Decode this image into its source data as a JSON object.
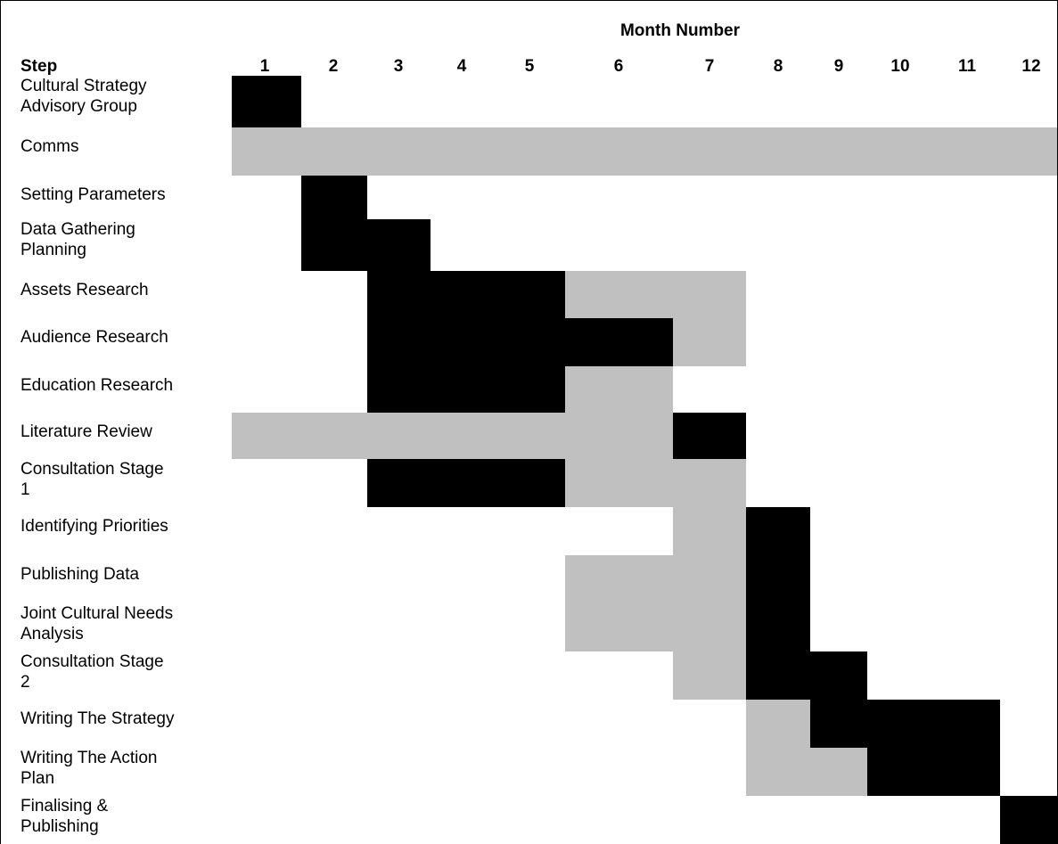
{
  "chart_data": {
    "type": "gantt",
    "column_group_label": "Month Number",
    "row_header": "Step",
    "months": [
      "1",
      "2",
      "3",
      "4",
      "5",
      "6",
      "7",
      "8",
      "9",
      "10",
      "11",
      "12"
    ],
    "legend": [],
    "colors": {
      "primary": "#000000",
      "secondary": "#c0c0c0",
      "background": "#ffffff"
    },
    "tasks": [
      {
        "label": [
          "Cultural Strategy",
          "Advisory Group"
        ],
        "primary": [
          1,
          1
        ],
        "secondary": []
      },
      {
        "label": [
          "Comms"
        ],
        "primary": [],
        "secondary": [
          [
            1,
            12
          ]
        ]
      },
      {
        "label": [
          "Setting Parameters"
        ],
        "primary": [
          [
            2,
            2
          ]
        ],
        "secondary": []
      },
      {
        "label": [
          "Data Gathering",
          "Planning"
        ],
        "primary": [
          [
            2,
            3
          ]
        ],
        "secondary": []
      },
      {
        "label": [
          "Assets Research"
        ],
        "primary": [
          [
            3,
            5
          ]
        ],
        "secondary": [
          [
            6,
            7
          ]
        ]
      },
      {
        "label": [
          "Audience Research"
        ],
        "primary": [
          [
            3,
            6
          ]
        ],
        "secondary": [
          [
            7,
            7
          ]
        ]
      },
      {
        "label": [
          "Education Research"
        ],
        "primary": [
          [
            3,
            5
          ]
        ],
        "secondary": [
          [
            6,
            6
          ]
        ]
      },
      {
        "label": [
          "Literature Review"
        ],
        "primary": [
          [
            7,
            7
          ]
        ],
        "secondary": [
          [
            1,
            6
          ]
        ]
      },
      {
        "label": [
          "Consultation Stage",
          "1"
        ],
        "primary": [
          [
            3,
            5
          ]
        ],
        "secondary": [
          [
            6,
            7
          ]
        ]
      },
      {
        "label": [
          "Identifying Priorities"
        ],
        "primary": [
          [
            8,
            8
          ]
        ],
        "secondary": [
          [
            7,
            7
          ]
        ]
      },
      {
        "label": [
          "Publishing Data"
        ],
        "primary": [
          [
            8,
            8
          ]
        ],
        "secondary": [
          [
            6,
            7
          ]
        ]
      },
      {
        "label": [
          "Joint Cultural Needs",
          "Analysis"
        ],
        "primary": [
          [
            8,
            8
          ]
        ],
        "secondary": [
          [
            6,
            7
          ]
        ]
      },
      {
        "label": [
          "Consultation Stage",
          "2"
        ],
        "primary": [
          [
            8,
            9
          ]
        ],
        "secondary": [
          [
            7,
            7
          ]
        ]
      },
      {
        "label": [
          "Writing The Strategy"
        ],
        "primary": [
          [
            9,
            11
          ]
        ],
        "secondary": [
          [
            8,
            8
          ]
        ]
      },
      {
        "label": [
          "Writing The Action",
          "Plan"
        ],
        "primary": [
          [
            10,
            11
          ]
        ],
        "secondary": [
          [
            8,
            9
          ]
        ]
      },
      {
        "label": [
          "Finalising &",
          "Publishing"
        ],
        "primary": [
          [
            12,
            12
          ]
        ],
        "secondary": []
      }
    ]
  }
}
